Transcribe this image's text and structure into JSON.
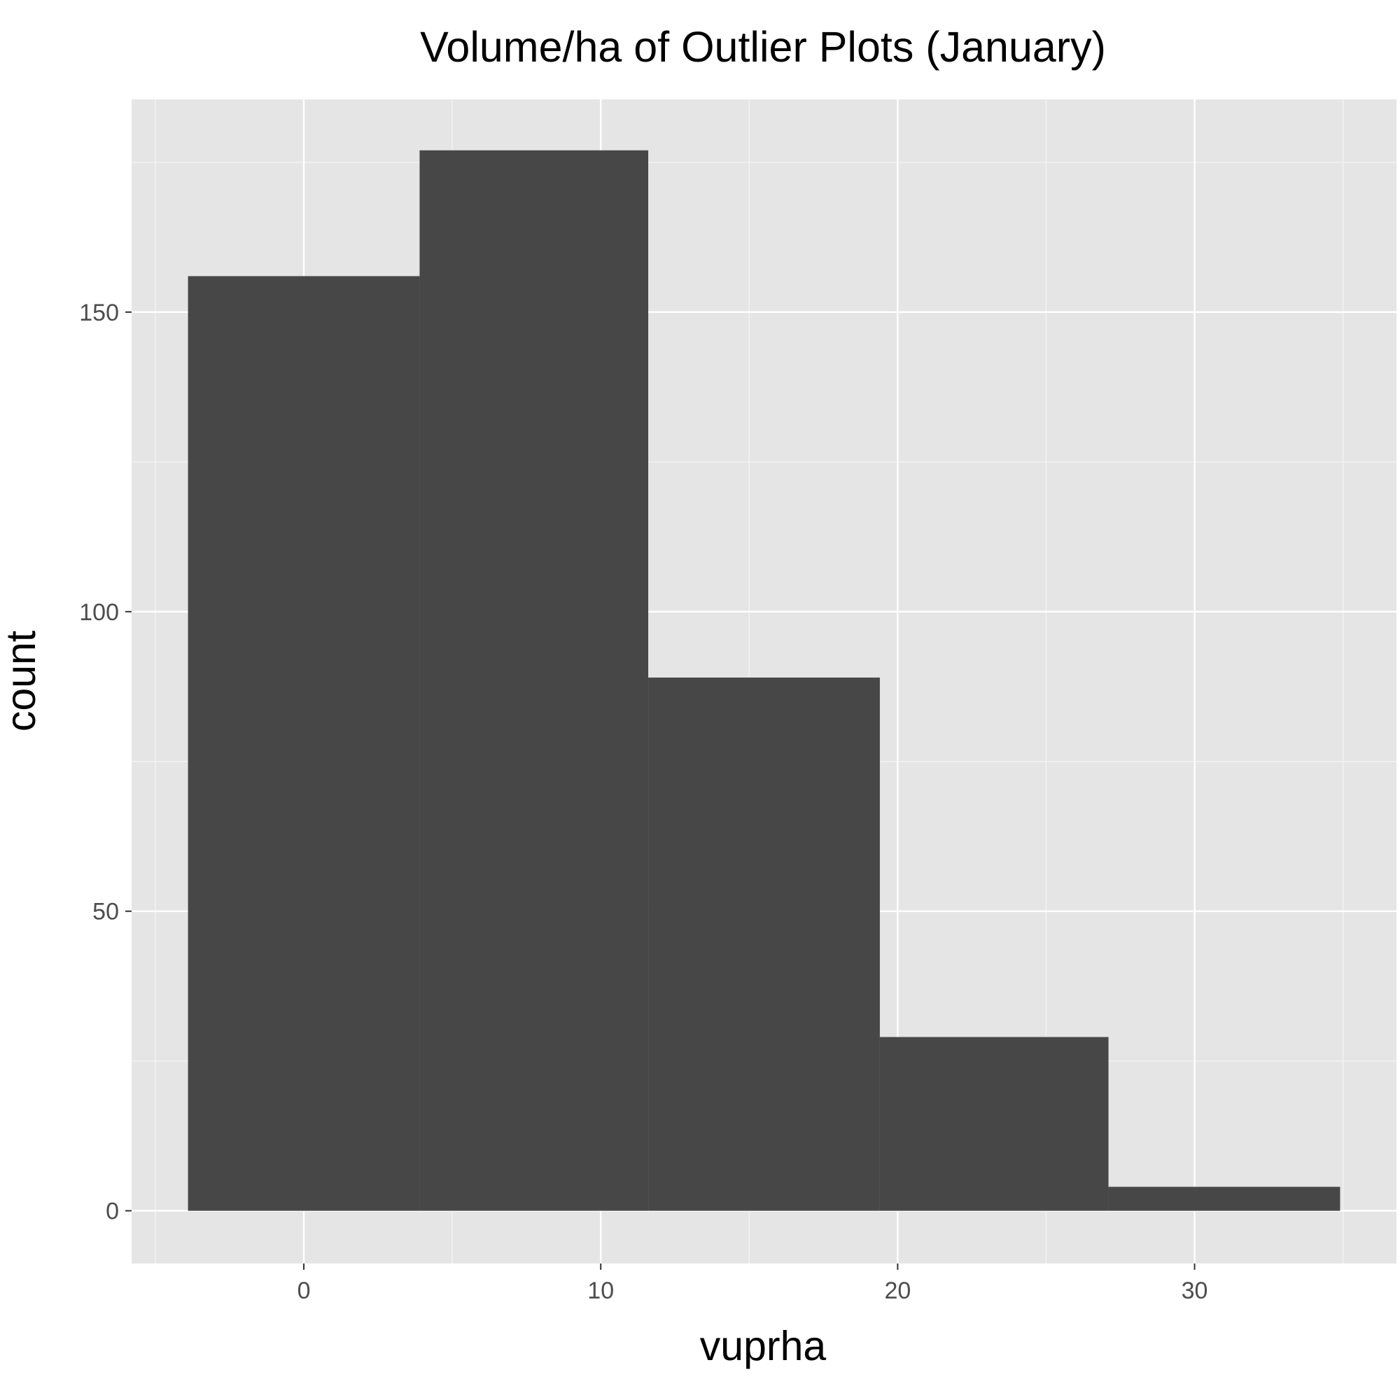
{
  "chart_data": {
    "type": "bar",
    "title": "Volume/ha of Outlier Plots (January)",
    "xlabel": "vuprha",
    "ylabel": "count",
    "x_ticks": [
      0,
      10,
      20,
      30
    ],
    "x_tick_labels": [
      "0",
      "10",
      "20",
      "30"
    ],
    "y_ticks": [
      0,
      50,
      100,
      150
    ],
    "y_tick_labels": [
      "0",
      "50",
      "100",
      "150"
    ],
    "xlim": [
      -5.8,
      36.8
    ],
    "ylim": [
      -8.8,
      185.5
    ],
    "bins": [
      {
        "x0": -3.9,
        "x1": 3.9,
        "count": 156
      },
      {
        "x0": 3.9,
        "x1": 11.6,
        "count": 177
      },
      {
        "x0": 11.6,
        "x1": 19.4,
        "count": 89
      },
      {
        "x0": 19.4,
        "x1": 27.1,
        "count": 29
      },
      {
        "x0": 27.1,
        "x1": 34.9,
        "count": 4
      }
    ],
    "grid": true,
    "colors": {
      "panel_background": "#e5e5e5",
      "grid_major": "#ffffff",
      "grid_minor": "#f2f2f2",
      "bar_fill": "#474747",
      "tick_label": "#4d4d4d",
      "tick_mark": "#333333"
    }
  }
}
